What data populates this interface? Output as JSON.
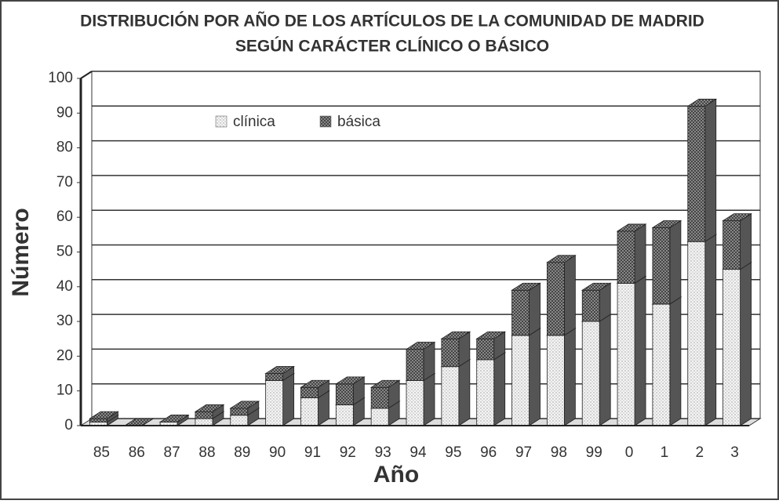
{
  "chart_data": {
    "type": "bar3d_stacked",
    "title": [
      "DISTRIBUCIÓN POR AÑO DE LOS ARTÍCULOS DE LA COMUNIDAD DE MADRID",
      "SEGÚN CARÁCTER CLÍNICO O BÁSICO"
    ],
    "x_label": "Año",
    "y_label": "Número",
    "categories": [
      "85",
      "86",
      "87",
      "88",
      "89",
      "90",
      "91",
      "92",
      "93",
      "94",
      "95",
      "96",
      "97",
      "98",
      "99",
      "0",
      "1",
      "2",
      "3"
    ],
    "series": [
      {
        "name": "clínica",
        "color": "#e8e8e8",
        "values": [
          1,
          0,
          1,
          2,
          3,
          13,
          8,
          6,
          5,
          13,
          17,
          19,
          26,
          26,
          30,
          41,
          35,
          53,
          45
        ]
      },
      {
        "name": "básica",
        "color": "#8a8a8a",
        "values": [
          1,
          0,
          0,
          2,
          2,
          2,
          3,
          6,
          6,
          9,
          8,
          6,
          13,
          21,
          9,
          15,
          22,
          39,
          14
        ]
      }
    ],
    "ylim": [
      0,
      100
    ],
    "yticks": [
      0,
      10,
      20,
      30,
      40,
      50,
      60,
      70,
      80,
      90,
      100
    ],
    "grid": true,
    "legend": "top"
  }
}
